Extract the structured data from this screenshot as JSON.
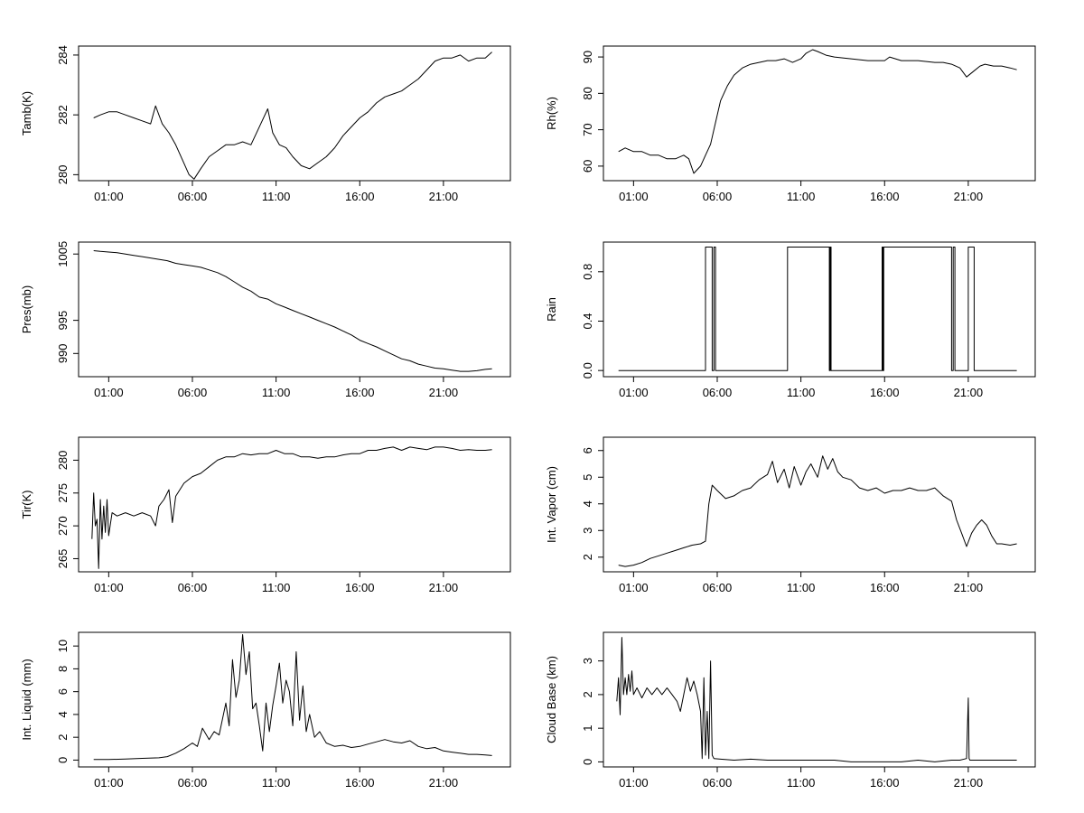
{
  "chart_data": [
    {
      "type": "line",
      "ylabel": "Tamb(K)",
      "xlim": [
        -0.8,
        25.0
      ],
      "ylim": [
        279.8,
        284.3
      ],
      "xticks": [
        1,
        6,
        11,
        16,
        21
      ],
      "xtick_labels": [
        "01:00",
        "06:00",
        "11:00",
        "16:00",
        "21:00"
      ],
      "yticks": [
        280,
        282,
        284
      ],
      "ytick_labels": [
        "280",
        "282",
        "284"
      ],
      "x": [
        0.1,
        0.5,
        1,
        1.5,
        2,
        2.5,
        3,
        3.5,
        3.8,
        4.2,
        4.6,
        5,
        5.4,
        5.8,
        6.1,
        6.5,
        7,
        7.5,
        8,
        8.5,
        9,
        9.5,
        10,
        10.5,
        10.8,
        11.2,
        11.6,
        12,
        12.5,
        13,
        13.5,
        14,
        14.5,
        15,
        15.5,
        16,
        16.5,
        17,
        17.5,
        18,
        18.5,
        19,
        19.5,
        20,
        20.5,
        21,
        21.5,
        22,
        22.5,
        23,
        23.5,
        23.9
      ],
      "values": [
        281.9,
        282.0,
        282.1,
        282.1,
        282.0,
        281.9,
        281.8,
        281.7,
        282.3,
        281.7,
        281.4,
        281.0,
        280.5,
        280.0,
        279.85,
        280.2,
        280.6,
        280.8,
        281.0,
        281.0,
        281.1,
        281.0,
        281.6,
        282.2,
        281.4,
        281.0,
        280.9,
        280.6,
        280.3,
        280.2,
        280.4,
        280.6,
        280.9,
        281.3,
        281.6,
        281.9,
        282.1,
        282.4,
        282.6,
        282.7,
        282.8,
        283.0,
        283.2,
        283.5,
        283.8,
        283.9,
        283.9,
        284.0,
        283.8,
        283.9,
        283.9,
        284.1
      ]
    },
    {
      "type": "line",
      "ylabel": "Rh(%)",
      "xlim": [
        -0.8,
        25.0
      ],
      "ylim": [
        56,
        93
      ],
      "xticks": [
        1,
        6,
        11,
        16,
        21
      ],
      "xtick_labels": [
        "01:00",
        "06:00",
        "11:00",
        "16:00",
        "21:00"
      ],
      "yticks": [
        60,
        70,
        80,
        90
      ],
      "ytick_labels": [
        "60",
        "70",
        "80",
        "90"
      ],
      "x": [
        0.1,
        0.5,
        1,
        1.5,
        2,
        2.5,
        3,
        3.5,
        4,
        4.3,
        4.6,
        5,
        5.3,
        5.6,
        5.9,
        6.2,
        6.6,
        7,
        7.5,
        8,
        8.5,
        9,
        9.5,
        10,
        10.5,
        11,
        11.3,
        11.7,
        12,
        12.5,
        13,
        14,
        15,
        16,
        16.3,
        17,
        18,
        19,
        19.5,
        20,
        20.5,
        20.9,
        21.3,
        21.7,
        22,
        22.5,
        23,
        23.5,
        23.9
      ],
      "values": [
        64,
        65,
        64,
        64,
        63,
        63,
        62,
        62,
        63,
        62,
        58,
        60,
        63,
        66,
        72,
        78,
        82,
        85,
        87,
        88,
        88.5,
        89,
        89,
        89.5,
        88.5,
        89.5,
        91,
        92,
        91.5,
        90.5,
        90,
        89.5,
        89,
        89,
        90,
        89,
        89,
        88.5,
        88.5,
        88,
        87,
        84.5,
        86,
        87.5,
        88,
        87.5,
        87.5,
        87,
        86.5
      ]
    },
    {
      "type": "line",
      "ylabel": "Pres(mb)",
      "xlim": [
        -0.8,
        25.0
      ],
      "ylim": [
        986.5,
        1006.8
      ],
      "xticks": [
        1,
        6,
        11,
        16,
        21
      ],
      "xtick_labels": [
        "01:00",
        "06:00",
        "11:00",
        "16:00",
        "21:00"
      ],
      "yticks": [
        990,
        995,
        1005
      ],
      "ytick_labels": [
        "990",
        "995",
        "1005"
      ],
      "x": [
        0.1,
        0.5,
        1,
        1.5,
        2,
        2.5,
        3,
        3.5,
        4,
        4.5,
        5,
        5.5,
        6,
        6.5,
        7,
        7.5,
        8,
        8.5,
        9,
        9.5,
        10,
        10.5,
        11,
        11.5,
        12,
        12.5,
        13,
        13.5,
        14,
        14.5,
        15,
        15.5,
        16,
        16.5,
        17,
        17.5,
        18,
        18.5,
        19,
        19.5,
        20,
        20.5,
        21,
        21.5,
        22,
        22.5,
        23,
        23.5,
        23.9
      ],
      "values": [
        1005.5,
        1005.4,
        1005.3,
        1005.2,
        1005.0,
        1004.8,
        1004.6,
        1004.4,
        1004.2,
        1004.0,
        1003.6,
        1003.4,
        1003.2,
        1003.0,
        1002.6,
        1002.2,
        1001.6,
        1000.8,
        1000.0,
        999.4,
        998.5,
        998.2,
        997.5,
        997.0,
        996.5,
        996.0,
        995.5,
        995.0,
        994.5,
        994.0,
        993.4,
        992.8,
        992.0,
        991.5,
        991.0,
        990.4,
        989.8,
        989.2,
        988.9,
        988.4,
        988.1,
        987.8,
        987.7,
        987.5,
        987.3,
        987.3,
        987.4,
        987.6,
        987.7
      ]
    },
    {
      "type": "line",
      "ylabel": "Rain",
      "xlim": [
        -0.8,
        25.0
      ],
      "ylim": [
        -0.05,
        1.04
      ],
      "xticks": [
        1,
        6,
        11,
        16,
        21
      ],
      "xtick_labels": [
        "01:00",
        "06:00",
        "11:00",
        "16:00",
        "21:00"
      ],
      "yticks": [
        0.0,
        0.4,
        0.8
      ],
      "ytick_labels": [
        "0.0",
        "0.4",
        "0.8"
      ],
      "x": [
        0.1,
        5.3,
        5.3,
        5.7,
        5.7,
        5.8,
        5.8,
        5.9,
        5.9,
        10.2,
        10.2,
        12.7,
        12.7,
        12.75,
        12.75,
        12.8,
        12.8,
        15.85,
        15.85,
        15.9,
        15.9,
        15.95,
        15.95,
        20.0,
        20.0,
        20.1,
        20.1,
        20.2,
        20.2,
        21.0,
        21.0,
        21.35,
        21.35,
        23.9
      ],
      "values": [
        0,
        0,
        1,
        1,
        0,
        0,
        1,
        1,
        0,
        0,
        1,
        1,
        0,
        0,
        1,
        1,
        0,
        0,
        1,
        1,
        0,
        0,
        1,
        1,
        0,
        0,
        1,
        1,
        0,
        0,
        1,
        1,
        0,
        0
      ]
    },
    {
      "type": "line",
      "ylabel": "Tir(K)",
      "xlim": [
        -0.8,
        25.0
      ],
      "ylim": [
        263,
        283.5
      ],
      "xticks": [
        1,
        6,
        11,
        16,
        21
      ],
      "xtick_labels": [
        "01:00",
        "06:00",
        "11:00",
        "16:00",
        "21:00"
      ],
      "yticks": [
        265,
        270,
        275,
        280
      ],
      "ytick_labels": [
        "265",
        "270",
        "275",
        "280"
      ],
      "x": [
        0.0,
        0.1,
        0.2,
        0.3,
        0.4,
        0.5,
        0.6,
        0.7,
        0.8,
        0.9,
        1.0,
        1.2,
        1.5,
        2,
        2.5,
        3,
        3.5,
        3.8,
        4,
        4.3,
        4.6,
        4.8,
        5,
        5.5,
        6,
        6.5,
        7,
        7.5,
        8,
        8.5,
        9,
        9.5,
        10,
        10.5,
        11,
        11.5,
        12,
        12.5,
        13,
        13.5,
        14,
        14.5,
        15,
        15.5,
        16,
        16.5,
        17,
        17.5,
        18,
        18.5,
        19,
        19.5,
        20,
        20.5,
        21,
        21.5,
        22,
        22.5,
        23,
        23.5,
        23.9
      ],
      "values": [
        268,
        275,
        270,
        271,
        263.5,
        274,
        268,
        273,
        269,
        274,
        268.5,
        272,
        271.5,
        272,
        271.5,
        272,
        271.5,
        270,
        273,
        274,
        275.5,
        270.5,
        274.5,
        276.5,
        277.5,
        278,
        279,
        280,
        280.5,
        280.5,
        281,
        280.8,
        281,
        281,
        281.5,
        281,
        281,
        280.5,
        280.5,
        280.3,
        280.5,
        280.5,
        280.8,
        281,
        281,
        281.5,
        281.5,
        281.8,
        282,
        281.5,
        282,
        281.8,
        281.6,
        282,
        282,
        281.8,
        281.5,
        281.6,
        281.5,
        281.5,
        281.6
      ]
    },
    {
      "type": "line",
      "ylabel": "Int. Vapor (cm)",
      "xlim": [
        -0.8,
        25.0
      ],
      "ylim": [
        1.45,
        6.5
      ],
      "xticks": [
        1,
        6,
        11,
        16,
        21
      ],
      "xtick_labels": [
        "01:00",
        "06:00",
        "11:00",
        "16:00",
        "21:00"
      ],
      "yticks": [
        2,
        3,
        4,
        5,
        6
      ],
      "ytick_labels": [
        "2",
        "3",
        "4",
        "5",
        "6"
      ],
      "x": [
        0.1,
        0.5,
        1,
        1.5,
        2,
        2.5,
        3,
        3.5,
        4,
        4.5,
        5,
        5.3,
        5.5,
        5.7,
        6,
        6.5,
        7,
        7.5,
        8,
        8.5,
        9,
        9.3,
        9.6,
        10,
        10.3,
        10.6,
        11,
        11.3,
        11.6,
        12,
        12.3,
        12.6,
        12.9,
        13.2,
        13.5,
        14,
        14.5,
        15,
        15.5,
        16,
        16.5,
        17,
        17.5,
        18,
        18.5,
        19,
        19.5,
        20,
        20.3,
        20.6,
        20.9,
        21.2,
        21.5,
        21.8,
        22.1,
        22.4,
        22.7,
        23,
        23.5,
        23.9
      ],
      "values": [
        1.7,
        1.65,
        1.7,
        1.8,
        1.95,
        2.05,
        2.15,
        2.25,
        2.35,
        2.45,
        2.5,
        2.6,
        4.0,
        4.7,
        4.5,
        4.2,
        4.3,
        4.5,
        4.6,
        4.9,
        5.1,
        5.6,
        4.8,
        5.3,
        4.6,
        5.4,
        4.7,
        5.2,
        5.5,
        5.0,
        5.8,
        5.3,
        5.7,
        5.2,
        5.0,
        4.9,
        4.6,
        4.5,
        4.6,
        4.4,
        4.5,
        4.5,
        4.6,
        4.5,
        4.5,
        4.6,
        4.3,
        4.1,
        3.4,
        2.9,
        2.4,
        2.9,
        3.2,
        3.4,
        3.2,
        2.8,
        2.5,
        2.5,
        2.45,
        2.5
      ]
    },
    {
      "type": "line",
      "ylabel": "Int. Liquid (mm)",
      "xlim": [
        -0.8,
        25.0
      ],
      "ylim": [
        -0.6,
        11.2
      ],
      "xticks": [
        1,
        6,
        11,
        16,
        21
      ],
      "xtick_labels": [
        "01:00",
        "06:00",
        "11:00",
        "16:00",
        "21:00"
      ],
      "yticks": [
        0,
        2,
        4,
        6,
        8,
        10
      ],
      "ytick_labels": [
        "0",
        "2",
        "4",
        "6",
        "8",
        "10"
      ],
      "x": [
        0.1,
        1,
        2,
        3,
        4,
        4.5,
        5,
        5.5,
        6,
        6.3,
        6.6,
        7,
        7.3,
        7.6,
        8,
        8.2,
        8.4,
        8.6,
        8.8,
        9.0,
        9.2,
        9.4,
        9.6,
        9.8,
        10.0,
        10.2,
        10.4,
        10.6,
        10.8,
        11.0,
        11.2,
        11.4,
        11.6,
        11.8,
        12.0,
        12.2,
        12.4,
        12.6,
        12.8,
        13.0,
        13.3,
        13.6,
        14,
        14.5,
        15,
        15.5,
        16,
        16.5,
        17,
        17.5,
        18,
        18.5,
        19,
        19.5,
        20,
        20.5,
        21,
        21.5,
        22,
        22.5,
        23,
        23.5,
        23.9
      ],
      "values": [
        0.05,
        0.05,
        0.1,
        0.15,
        0.2,
        0.3,
        0.6,
        1.0,
        1.5,
        1.2,
        2.8,
        1.8,
        2.5,
        2.2,
        5.0,
        3.0,
        8.8,
        5.5,
        7.0,
        11.0,
        7.5,
        9.5,
        4.5,
        5.0,
        3.0,
        0.8,
        5.0,
        2.5,
        4.8,
        6.5,
        8.5,
        5.0,
        7.0,
        6.0,
        3.0,
        9.5,
        3.5,
        6.5,
        2.5,
        4.0,
        2.0,
        2.5,
        1.5,
        1.2,
        1.3,
        1.1,
        1.2,
        1.4,
        1.6,
        1.8,
        1.6,
        1.5,
        1.7,
        1.2,
        1.0,
        1.1,
        0.8,
        0.7,
        0.6,
        0.5,
        0.5,
        0.45,
        0.4
      ]
    },
    {
      "type": "line",
      "ylabel": "Cloud Base (km)",
      "xlim": [
        -0.8,
        25.0
      ],
      "ylim": [
        -0.15,
        3.85
      ],
      "xticks": [
        1,
        6,
        11,
        16,
        21
      ],
      "xtick_labels": [
        "01:00",
        "06:00",
        "11:00",
        "16:00",
        "21:00"
      ],
      "yticks": [
        0,
        1,
        2,
        3
      ],
      "ytick_labels": [
        "0",
        "1",
        "2",
        "3"
      ],
      "x": [
        0.0,
        0.1,
        0.2,
        0.3,
        0.4,
        0.5,
        0.6,
        0.7,
        0.8,
        0.9,
        1.0,
        1.2,
        1.5,
        1.8,
        2.1,
        2.4,
        2.7,
        3.0,
        3.3,
        3.6,
        3.8,
        4.0,
        4.2,
        4.4,
        4.6,
        4.8,
        5.0,
        5.1,
        5.2,
        5.3,
        5.4,
        5.5,
        5.6,
        5.7,
        5.8,
        6.2,
        7,
        8,
        9,
        10,
        11,
        12,
        13,
        14,
        15,
        16,
        17,
        18,
        19,
        20,
        20.5,
        20.9,
        21.0,
        21.05,
        21.1,
        22,
        23,
        23.9
      ],
      "values": [
        1.8,
        2.5,
        1.4,
        3.7,
        2.0,
        2.5,
        2.0,
        2.6,
        2.1,
        2.7,
        2.0,
        2.2,
        1.9,
        2.2,
        2.0,
        2.2,
        2.0,
        2.2,
        2.0,
        1.8,
        1.5,
        2.0,
        2.5,
        2.1,
        2.4,
        2.0,
        1.5,
        0.1,
        2.5,
        0.2,
        1.5,
        0.1,
        3.0,
        0.2,
        0.1,
        0.08,
        0.05,
        0.08,
        0.05,
        0.05,
        0.05,
        0.05,
        0.05,
        0.0,
        0.0,
        0.0,
        0.0,
        0.05,
        0.0,
        0.05,
        0.05,
        0.1,
        1.9,
        0.1,
        0.05,
        0.05,
        0.05,
        0.05
      ]
    }
  ]
}
